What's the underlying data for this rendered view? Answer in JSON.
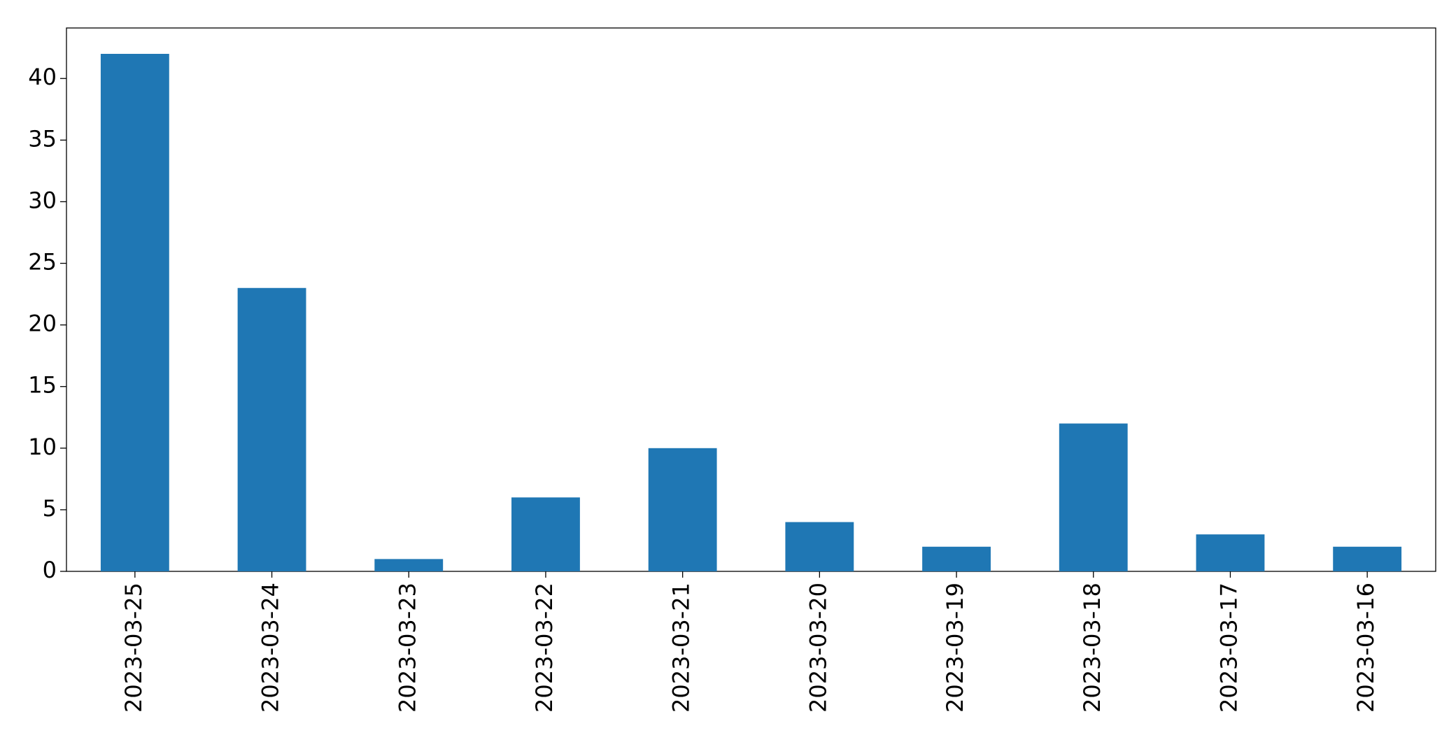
{
  "chart_data": {
    "type": "bar",
    "categories": [
      "2023-03-25",
      "2023-03-24",
      "2023-03-23",
      "2023-03-22",
      "2023-03-21",
      "2023-03-20",
      "2023-03-19",
      "2023-03-18",
      "2023-03-17",
      "2023-03-16"
    ],
    "values": [
      42,
      23,
      1,
      6,
      10,
      4,
      2,
      12,
      3,
      2
    ],
    "color": "#1f77b4",
    "ylim": [
      0,
      44.1
    ],
    "yticks": [
      0,
      5,
      10,
      15,
      20,
      25,
      30,
      35,
      40
    ],
    "grid": false
  }
}
